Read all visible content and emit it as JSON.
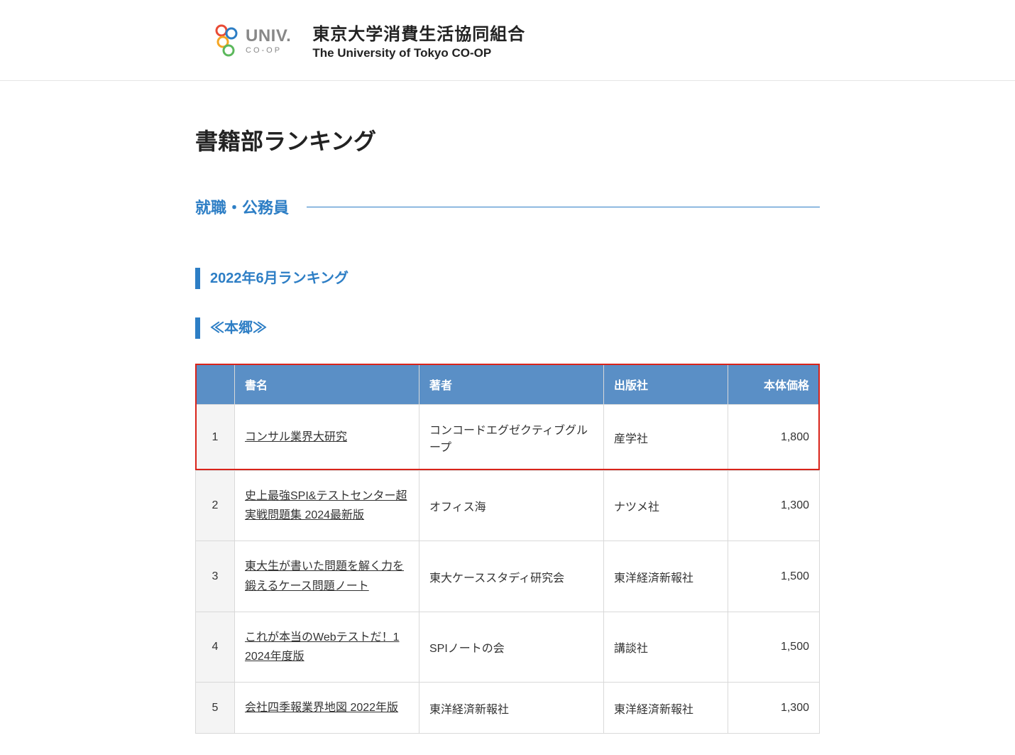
{
  "header": {
    "logo_univ": "univ.",
    "logo_coop": "CO-OP",
    "title_jp": "東京大学消費生活協同組合",
    "title_en": "The University of Tokyo CO-OP"
  },
  "page": {
    "title": "書籍部ランキング",
    "category": "就職・公務員",
    "period_heading": "2022年6月ランキング",
    "location_heading": "≪本郷≫"
  },
  "table": {
    "headers": {
      "rank": "",
      "title": "書名",
      "author": "著者",
      "publisher": "出版社",
      "price": "本体価格"
    },
    "rows": [
      {
        "rank": "1",
        "title": "コンサル業界大研究",
        "author": "コンコードエグゼクティブグループ",
        "publisher": "産学社",
        "price": "1,800",
        "highlighted": true
      },
      {
        "rank": "2",
        "title": "史上最強SPI&テストセンター超実戦問題集 2024最新版",
        "author": "オフィス海",
        "publisher": "ナツメ社",
        "price": "1,300"
      },
      {
        "rank": "3",
        "title": "東大生が書いた問題を解く力を鍛えるケース問題ノート",
        "author": "東大ケーススタディ研究会",
        "publisher": "東洋経済新報社",
        "price": "1,500"
      },
      {
        "rank": "4",
        "title": "これが本当のWebテストだ！1 2024年度版",
        "author": "SPIノートの会",
        "publisher": "講談社",
        "price": "1,500"
      },
      {
        "rank": "5",
        "title": "会社四季報業界地図 2022年版",
        "author": "東洋経済新報社",
        "publisher": "東洋経済新報社",
        "price": "1,300"
      }
    ]
  },
  "colors": {
    "accent": "#2d7ec5",
    "table_header_bg": "#5a8fc6",
    "highlight_border": "#d9231a",
    "rank_cell_bg": "#f4f4f4",
    "border": "#d9d9d9"
  }
}
